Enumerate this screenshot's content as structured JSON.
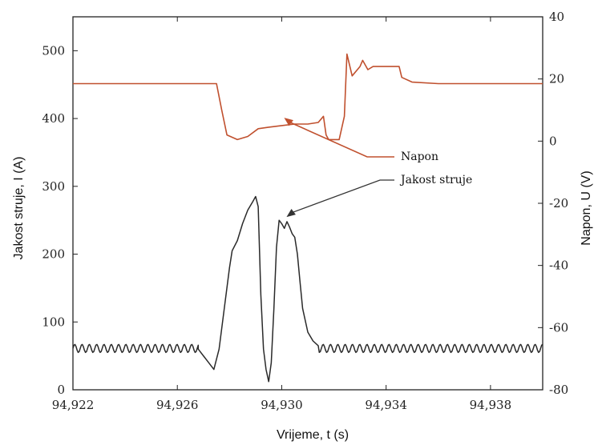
{
  "chart_data": {
    "type": "line",
    "title": "",
    "xlabel": "Vrijeme, t (s)",
    "ylabel_left": "Jakost struje, I (A)",
    "ylabel_right": "Napon, U (V)",
    "xlim": [
      94.922,
      94.94
    ],
    "ylim_left": [
      0,
      550
    ],
    "ylim_right": [
      -80,
      40
    ],
    "x_ticks": [
      94.922,
      94.926,
      94.93,
      94.934,
      94.938
    ],
    "x_tick_labels": [
      "94,922",
      "94,926",
      "94,930",
      "94,934",
      "94,938"
    ],
    "y_left_ticks": [
      0,
      100,
      200,
      300,
      400,
      500
    ],
    "y_left_tick_labels": [
      "0",
      "100",
      "200",
      "300",
      "400",
      "500"
    ],
    "y_right_ticks": [
      -80,
      -60,
      -40,
      -20,
      0,
      20,
      40
    ],
    "y_right_tick_labels": [
      "-80",
      "-60",
      "-40",
      "-20",
      "0",
      "20",
      "40"
    ],
    "grid": false,
    "colors": {
      "napon": "#c0502e",
      "struja": "#2a2a2a",
      "arrow_napon": "#c0502e",
      "arrow_struja": "#333333"
    },
    "series": [
      {
        "name": "Napon",
        "axis": "right",
        "points": [
          [
            94.922,
            18.5
          ],
          [
            94.9275,
            18.5
          ],
          [
            94.9277,
            10
          ],
          [
            94.9279,
            2
          ],
          [
            94.9283,
            0.5
          ],
          [
            94.9287,
            1.5
          ],
          [
            94.9291,
            4
          ],
          [
            94.9295,
            4.5
          ],
          [
            94.93,
            5
          ],
          [
            94.9305,
            5.5
          ],
          [
            94.931,
            5.5
          ],
          [
            94.9314,
            6
          ],
          [
            94.9316,
            8
          ],
          [
            94.9317,
            2
          ],
          [
            94.9318,
            0.5
          ],
          [
            94.9322,
            0.5
          ],
          [
            94.9324,
            8
          ],
          [
            94.9325,
            28
          ],
          [
            94.9327,
            21
          ],
          [
            94.933,
            24
          ],
          [
            94.9331,
            26
          ],
          [
            94.9333,
            23
          ],
          [
            94.9335,
            24
          ],
          [
            94.934,
            24
          ],
          [
            94.9345,
            24
          ],
          [
            94.9346,
            20.5
          ],
          [
            94.935,
            19
          ],
          [
            94.936,
            18.5
          ],
          [
            94.94,
            18.5
          ]
        ]
      },
      {
        "name": "Jakost struje",
        "axis": "left",
        "base_level": 61,
        "ripple_amplitude": 6,
        "ripple_period": 0.00028,
        "points": [
          [
            94.9268,
            60
          ],
          [
            94.9272,
            40
          ],
          [
            94.9274,
            30
          ],
          [
            94.9276,
            60
          ],
          [
            94.9278,
            120
          ],
          [
            94.928,
            180
          ],
          [
            94.9281,
            205
          ],
          [
            94.9283,
            220
          ],
          [
            94.9285,
            245
          ],
          [
            94.9287,
            265
          ],
          [
            94.9289,
            278
          ],
          [
            94.929,
            285
          ],
          [
            94.9291,
            270
          ],
          [
            94.9292,
            140
          ],
          [
            94.9293,
            60
          ],
          [
            94.9294,
            30
          ],
          [
            94.9295,
            12
          ],
          [
            94.9296,
            40
          ],
          [
            94.9297,
            120
          ],
          [
            94.9298,
            210
          ],
          [
            94.9299,
            250
          ],
          [
            94.93,
            245
          ],
          [
            94.9301,
            238
          ],
          [
            94.9302,
            248
          ],
          [
            94.9303,
            240
          ],
          [
            94.9304,
            230
          ],
          [
            94.9305,
            225
          ],
          [
            94.9306,
            200
          ],
          [
            94.9307,
            160
          ],
          [
            94.9308,
            120
          ],
          [
            94.931,
            85
          ],
          [
            94.9312,
            72
          ],
          [
            94.9314,
            65
          ]
        ]
      }
    ],
    "annotations": [
      {
        "text": "Napon",
        "target_series": "Napon",
        "target": [
          94.93,
          7
        ]
      },
      {
        "text": "Jakost struje",
        "target_series": "Jakost struje",
        "target": [
          94.93,
          250
        ]
      }
    ]
  }
}
